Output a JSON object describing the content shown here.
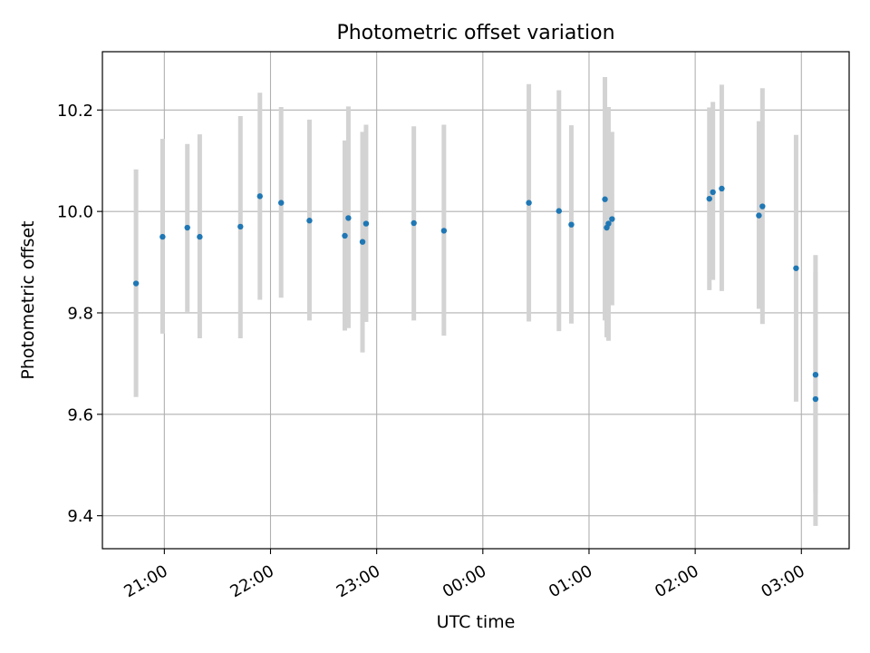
{
  "chart_data": {
    "type": "scatter",
    "title": "Photometric offset variation",
    "xlabel": "UTC time",
    "ylabel": "Photometric offset",
    "x_axis_type": "time",
    "xlim": [
      "20:25",
      "27:27"
    ],
    "ylim": [
      9.335,
      10.315
    ],
    "xticks": [
      {
        "time": "21:00",
        "label": "21:00"
      },
      {
        "time": "22:00",
        "label": "22:00"
      },
      {
        "time": "23:00",
        "label": "23:00"
      },
      {
        "time": "24:00",
        "label": "00:00"
      },
      {
        "time": "25:00",
        "label": "01:00"
      },
      {
        "time": "26:00",
        "label": "02:00"
      },
      {
        "time": "27:00",
        "label": "03:00"
      }
    ],
    "yticks": [
      {
        "value": 9.4,
        "label": "9.4"
      },
      {
        "value": 9.6,
        "label": "9.6"
      },
      {
        "value": 9.8,
        "label": "9.8"
      },
      {
        "value": 10.0,
        "label": "10.0"
      },
      {
        "value": 10.2,
        "label": "10.2"
      }
    ],
    "grid": true,
    "colors": {
      "points": "#1f77b4",
      "errorbars": "#d3d3d3",
      "grid": "#b0b0b0"
    },
    "points": [
      {
        "time": "20:44",
        "y": 9.858,
        "low": 9.634,
        "high": 10.083
      },
      {
        "time": "20:59",
        "y": 9.95,
        "low": 9.759,
        "high": 10.143
      },
      {
        "time": "21:13",
        "y": 9.968,
        "low": 9.802,
        "high": 10.133
      },
      {
        "time": "21:20",
        "y": 9.95,
        "low": 9.75,
        "high": 10.152
      },
      {
        "time": "21:43",
        "y": 9.97,
        "low": 9.75,
        "high": 10.188
      },
      {
        "time": "21:54",
        "y": 10.03,
        "low": 9.826,
        "high": 10.234
      },
      {
        "time": "22:06",
        "y": 10.017,
        "low": 9.83,
        "high": 10.206
      },
      {
        "time": "22:22",
        "y": 9.982,
        "low": 9.785,
        "high": 10.181
      },
      {
        "time": "22:42",
        "y": 9.952,
        "low": 9.765,
        "high": 10.14
      },
      {
        "time": "22:44",
        "y": 9.987,
        "low": 9.77,
        "high": 10.207
      },
      {
        "time": "22:52",
        "y": 9.94,
        "low": 9.722,
        "high": 10.157
      },
      {
        "time": "22:54",
        "y": 9.976,
        "low": 9.782,
        "high": 10.171
      },
      {
        "time": "23:21",
        "y": 9.977,
        "low": 9.785,
        "high": 10.168
      },
      {
        "time": "23:38",
        "y": 9.962,
        "low": 9.755,
        "high": 10.171
      },
      {
        "time": "00:26",
        "y": 10.017,
        "low": 9.783,
        "high": 10.251
      },
      {
        "time": "00:43",
        "y": 10.001,
        "low": 9.764,
        "high": 10.239
      },
      {
        "time": "00:50",
        "y": 9.974,
        "low": 9.779,
        "high": 10.17
      },
      {
        "time": "01:09",
        "y": 10.024,
        "low": 9.785,
        "high": 10.265
      },
      {
        "time": "01:10",
        "y": 9.968,
        "low": 9.752,
        "high": 10.186
      },
      {
        "time": "01:11",
        "y": 9.976,
        "low": 9.745,
        "high": 10.206
      },
      {
        "time": "01:13",
        "y": 9.985,
        "low": 9.815,
        "high": 10.157
      },
      {
        "time": "02:08",
        "y": 10.025,
        "low": 9.845,
        "high": 10.205
      },
      {
        "time": "02:10",
        "y": 10.038,
        "low": 9.865,
        "high": 10.216
      },
      {
        "time": "02:15",
        "y": 10.045,
        "low": 9.843,
        "high": 10.25
      },
      {
        "time": "02:36",
        "y": 9.992,
        "low": 9.808,
        "high": 10.178
      },
      {
        "time": "02:38",
        "y": 10.01,
        "low": 9.778,
        "high": 10.243
      },
      {
        "time": "02:57",
        "y": 9.888,
        "low": 9.625,
        "high": 10.151
      },
      {
        "time": "03:08",
        "y": 9.678,
        "low": 9.445,
        "high": 9.914
      },
      {
        "time": "03:08",
        "y": 9.63,
        "low": 9.38,
        "high": 9.88
      }
    ]
  }
}
